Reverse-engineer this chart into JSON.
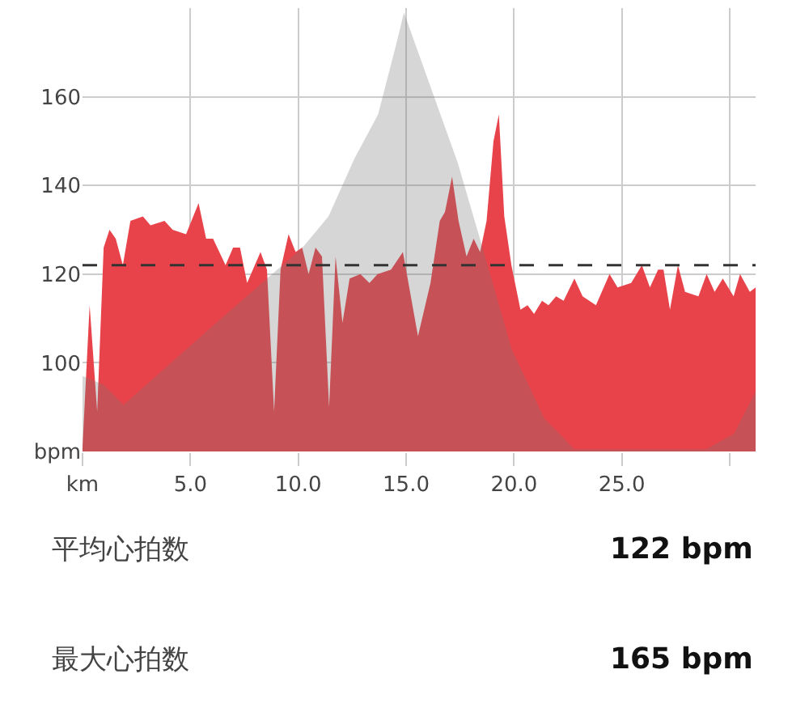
{
  "chart_data": {
    "type": "area",
    "xlim": [
      0,
      31.2
    ],
    "xticks": [
      {
        "value": 0,
        "label": "km"
      },
      {
        "value": 5,
        "label": "5.0"
      },
      {
        "value": 10,
        "label": "10.0"
      },
      {
        "value": 15,
        "label": "15.0"
      },
      {
        "value": 20,
        "label": "20.0"
      },
      {
        "value": 25,
        "label": "25.0"
      },
      {
        "value": 30,
        "label": null
      }
    ],
    "ylim": [
      80,
      180
    ],
    "yticks": [
      {
        "value": 80,
        "label": "bpm"
      },
      100,
      120,
      140,
      160
    ],
    "grid": true,
    "series": [
      {
        "color": "#e8434a",
        "x": [
          0,
          0.33,
          0.68,
          0.98,
          1.25,
          1.54,
          1.87,
          2.22,
          2.8,
          3.15,
          3.8,
          4.18,
          4.8,
          5.38,
          5.73,
          6.05,
          6.63,
          6.98,
          7.3,
          7.63,
          8.25,
          8.55,
          8.88,
          9.18,
          9.55,
          9.88,
          10.18,
          10.48,
          10.8,
          11.1,
          11.43,
          11.73,
          12.05,
          12.38,
          12.88,
          13.3,
          13.68,
          14.3,
          14.85,
          15.55,
          16.13,
          16.56,
          16.8,
          17.13,
          17.43,
          17.8,
          18.13,
          18.43,
          18.73,
          19.05,
          19.3,
          19.55,
          19.88,
          20.3,
          20.63,
          20.93,
          21.3,
          21.6,
          21.95,
          22.3,
          22.8,
          23.18,
          23.8,
          24.43,
          24.8,
          25.43,
          25.93,
          26.3,
          26.68,
          26.93,
          27.23,
          27.6,
          27.93,
          28.55,
          28.93,
          29.3,
          29.68,
          30.18,
          30.48,
          30.93,
          31.2
        ],
        "values": [
          81,
          113,
          89,
          126,
          130,
          128,
          122,
          132,
          133,
          131,
          132,
          130,
          129,
          136,
          128,
          128,
          122,
          126,
          126,
          118,
          125,
          121,
          89,
          121,
          129,
          125,
          126,
          120,
          126,
          124,
          90,
          124,
          109,
          119,
          120,
          118,
          120,
          121,
          125,
          106,
          118,
          132,
          134,
          142,
          132,
          124,
          128,
          125,
          132,
          150,
          156,
          133,
          122,
          112,
          113,
          111,
          114,
          113,
          115,
          114,
          119,
          115,
          113,
          120,
          117,
          118,
          122,
          117,
          121,
          121,
          112,
          122,
          116,
          115,
          120,
          116,
          119,
          115,
          120,
          116,
          117
        ]
      },
      {
        "color": "#d6d6d6",
        "x": [
          0,
          1,
          1.9,
          6.2,
          10.2,
          11.4,
          12.6,
          13.7,
          14.55,
          14.9,
          17.4,
          18.6,
          19.9,
          21.4,
          22.8,
          28.9,
          30.2,
          31.2
        ],
        "values": [
          97,
          95,
          90.5,
          109,
          126,
          133,
          146,
          156,
          172,
          179,
          145,
          125,
          103,
          87.5,
          80.5,
          80.5,
          84,
          93.5
        ]
      }
    ],
    "ref_lines": [
      {
        "axis": "y",
        "value": 122,
        "color": "#333333",
        "line_style": "dashed"
      }
    ],
    "annotations": [
      "平均心拍数",
      "122 bpm",
      "最大心拍数",
      "165 bpm"
    ]
  }
}
